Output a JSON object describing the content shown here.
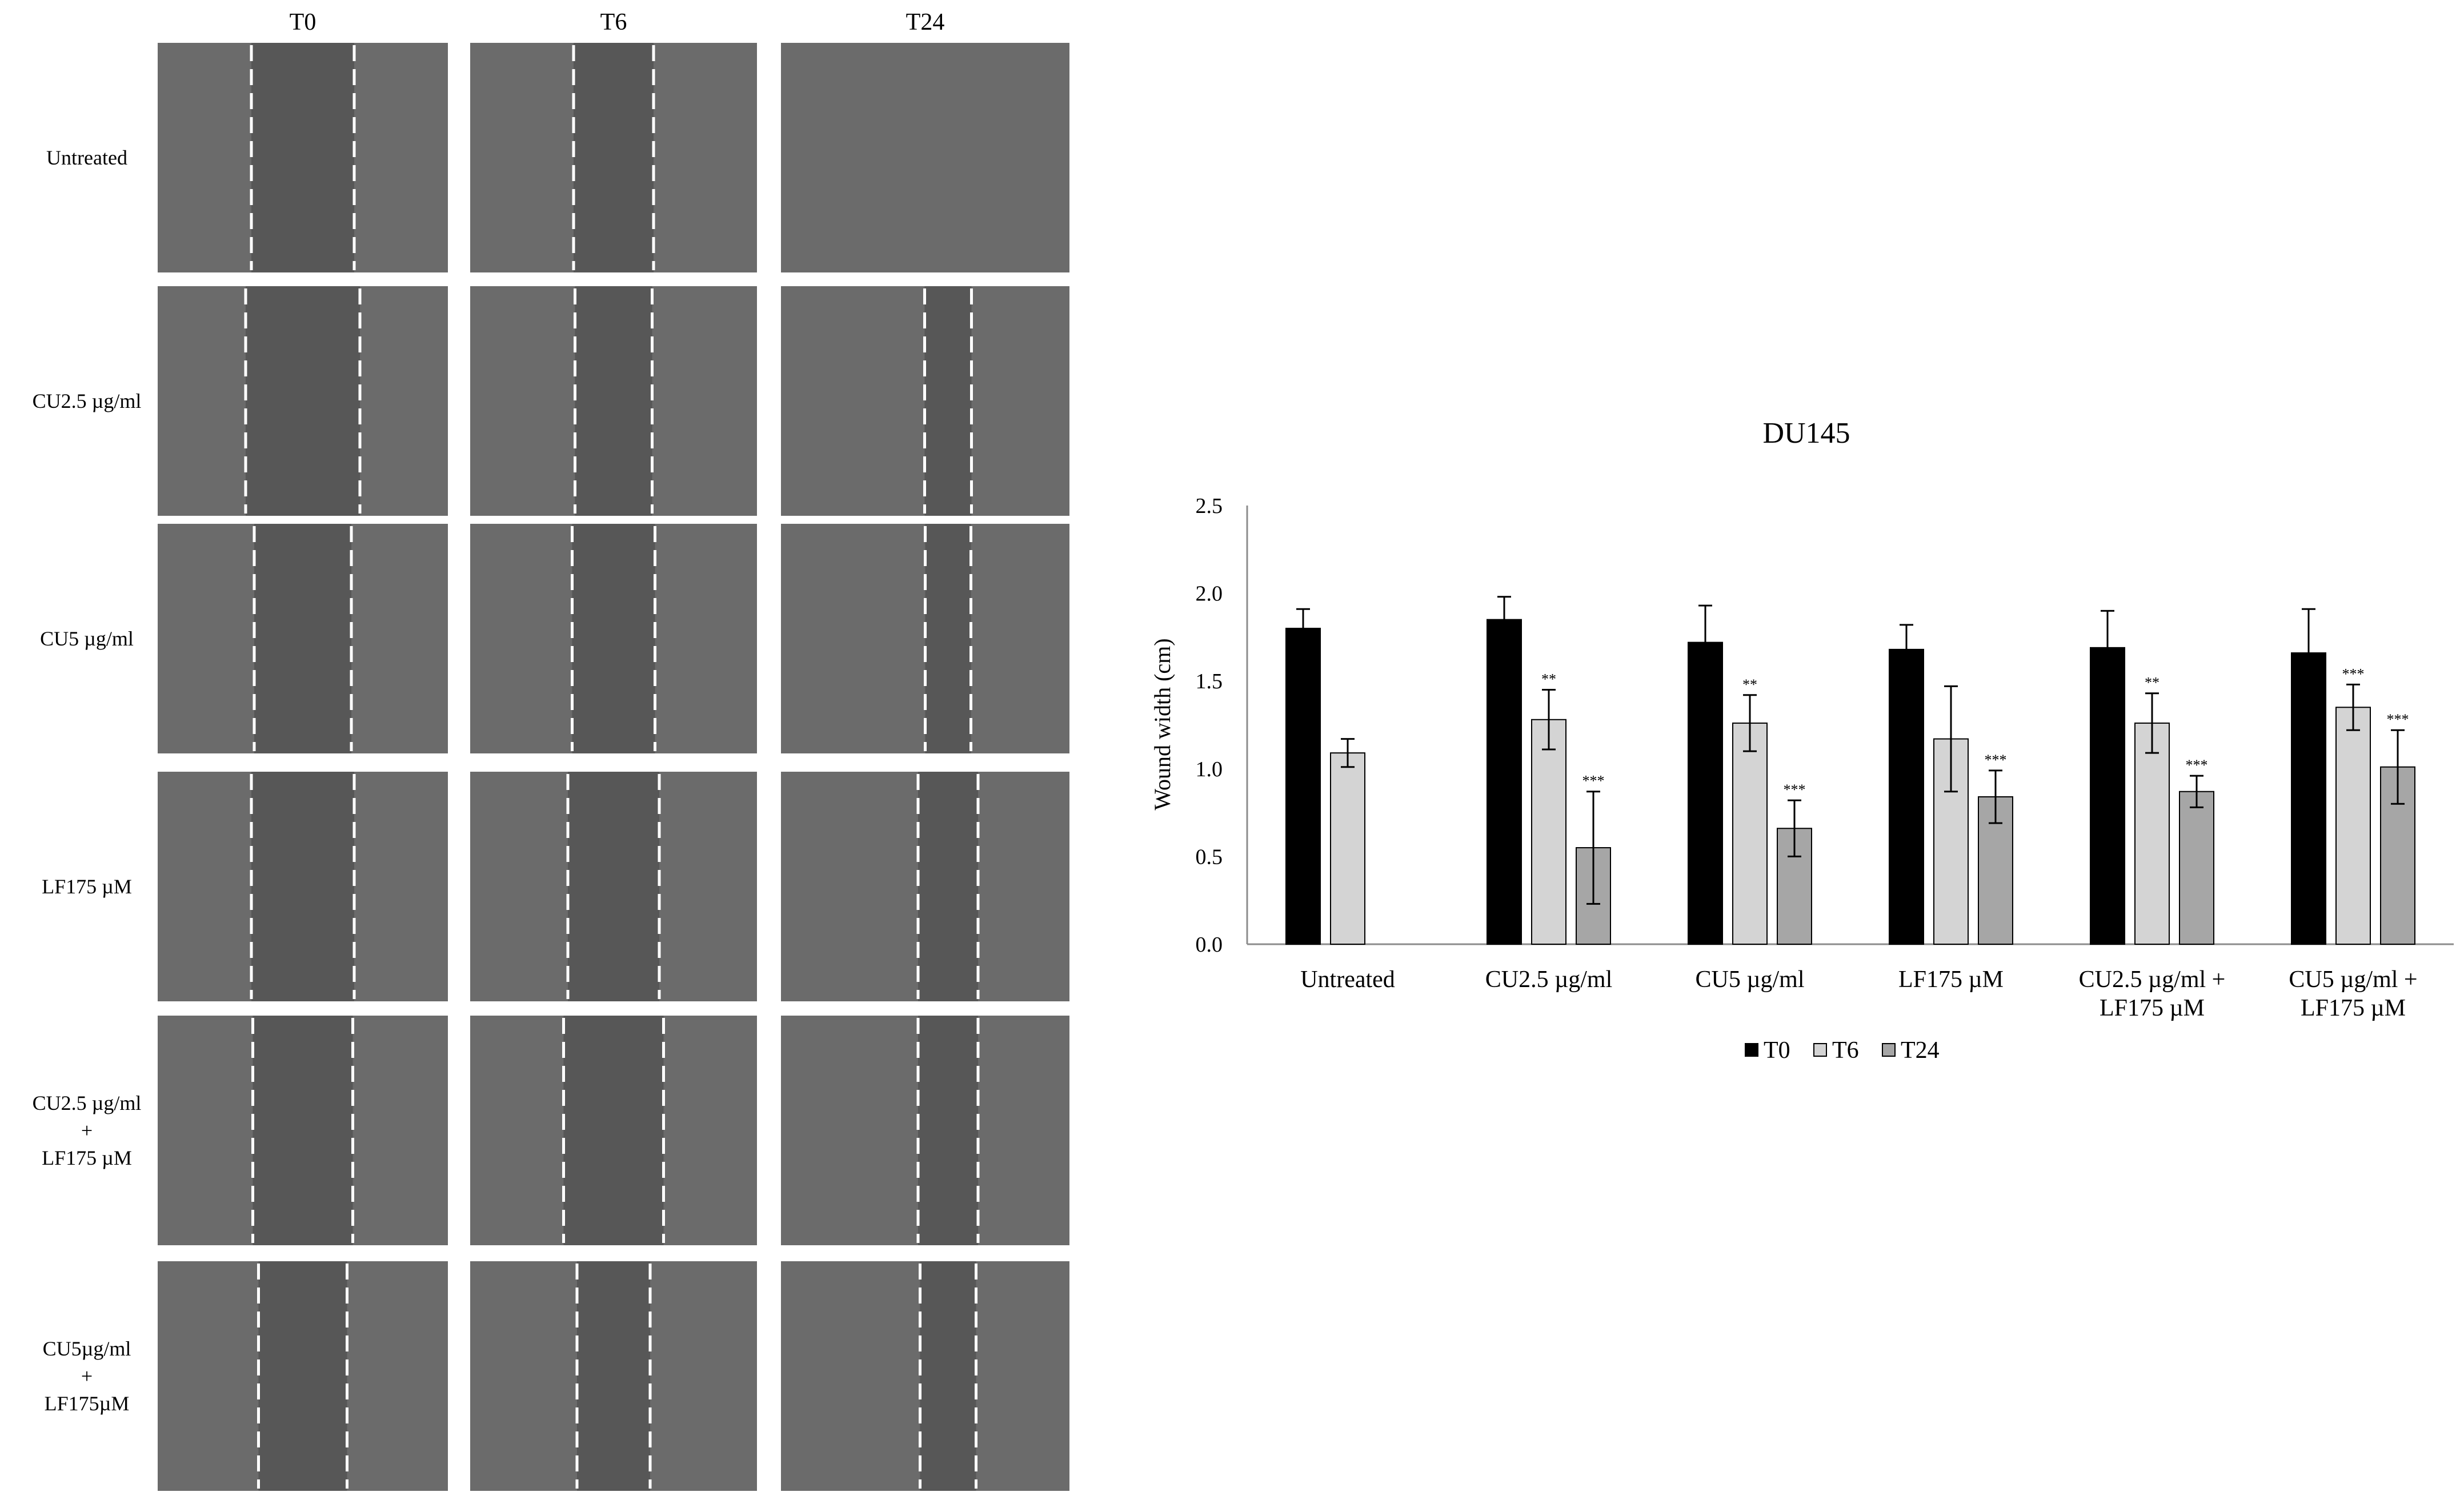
{
  "micrograph_panel": {
    "columns": [
      "T0",
      "T6",
      "T24"
    ],
    "rows": [
      [
        "Untreated"
      ],
      [
        "CU2.5 µg/ml"
      ],
      [
        "CU5 µg/ml"
      ],
      [
        "LF175 µM"
      ],
      [
        "CU2.5 µg/ml",
        "+",
        "LF175 µM"
      ],
      [
        "CU5µg/ml",
        "+",
        "LF175µM"
      ]
    ],
    "image_fill_color": "#6b6b6b",
    "scratch_color": "#575757",
    "marker_line_color": "#ffffff"
  },
  "chart_data": {
    "type": "bar",
    "title": "DU145",
    "xlabel": "",
    "ylabel": "Wound width (cm)",
    "ylim": [
      0,
      2.5
    ],
    "yticks": [
      "0.0",
      "0.5",
      "1.0",
      "1.5",
      "2.0",
      "2.5"
    ],
    "grid": false,
    "legend_position": "bottom",
    "categories": [
      [
        "Untreated"
      ],
      [
        "CU2.5 µg/ml"
      ],
      [
        "CU5 µg/ml"
      ],
      [
        "LF175 µM"
      ],
      [
        "CU2.5 µg/ml +",
        "LF175 µM"
      ],
      [
        "CU5 µg/ml +",
        "LF175 µM"
      ]
    ],
    "series": [
      {
        "name": "T0",
        "color": "#000000",
        "values": [
          1.8,
          1.85,
          1.72,
          1.68,
          1.69,
          1.66
        ],
        "errors": [
          0.11,
          0.13,
          0.21,
          0.14,
          0.21,
          0.25
        ],
        "significance": [
          "",
          "",
          "",
          "",
          "",
          ""
        ]
      },
      {
        "name": "T6",
        "color": "#d4d4d4",
        "values": [
          1.09,
          1.28,
          1.26,
          1.17,
          1.26,
          1.35
        ],
        "errors": [
          0.08,
          0.17,
          0.16,
          0.3,
          0.17,
          0.13
        ],
        "significance": [
          "",
          "**",
          "**",
          "",
          "**",
          "***"
        ]
      },
      {
        "name": "T24",
        "color": "#a6a6a6",
        "values": [
          0.0,
          0.55,
          0.66,
          0.84,
          0.87,
          1.01
        ],
        "errors": [
          0.0,
          0.32,
          0.16,
          0.15,
          0.09,
          0.21
        ],
        "significance": [
          "",
          "***",
          "***",
          "***",
          "***",
          "***"
        ]
      }
    ]
  }
}
